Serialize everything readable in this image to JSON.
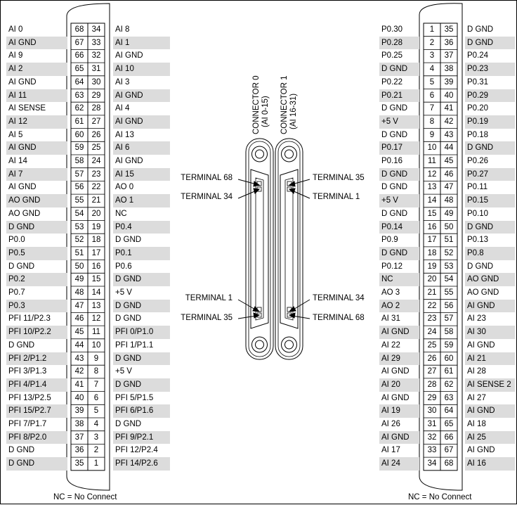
{
  "left_connector": {
    "rows": [
      {
        "left_label": "AI 0",
        "left_pin": "68",
        "right_pin": "34",
        "right_label": "AI 8"
      },
      {
        "left_label": "AI GND",
        "left_pin": "67",
        "right_pin": "33",
        "right_label": "AI 1"
      },
      {
        "left_label": "AI 9",
        "left_pin": "66",
        "right_pin": "32",
        "right_label": "AI GND"
      },
      {
        "left_label": "AI 2",
        "left_pin": "65",
        "right_pin": "31",
        "right_label": "AI 10"
      },
      {
        "left_label": "AI GND",
        "left_pin": "64",
        "right_pin": "30",
        "right_label": "AI 3"
      },
      {
        "left_label": "AI 11",
        "left_pin": "63",
        "right_pin": "29",
        "right_label": "AI GND"
      },
      {
        "left_label": "AI SENSE",
        "left_pin": "62",
        "right_pin": "28",
        "right_label": "AI 4"
      },
      {
        "left_label": "AI 12",
        "left_pin": "61",
        "right_pin": "27",
        "right_label": "AI GND"
      },
      {
        "left_label": "AI 5",
        "left_pin": "60",
        "right_pin": "26",
        "right_label": "AI 13"
      },
      {
        "left_label": "AI GND",
        "left_pin": "59",
        "right_pin": "25",
        "right_label": "AI 6"
      },
      {
        "left_label": "AI 14",
        "left_pin": "58",
        "right_pin": "24",
        "right_label": "AI GND"
      },
      {
        "left_label": "AI 7",
        "left_pin": "57",
        "right_pin": "23",
        "right_label": "AI 15"
      },
      {
        "left_label": "AI GND",
        "left_pin": "56",
        "right_pin": "22",
        "right_label": "AO 0"
      },
      {
        "left_label": "AO GND",
        "left_pin": "55",
        "right_pin": "21",
        "right_label": "AO 1"
      },
      {
        "left_label": "AO GND",
        "left_pin": "54",
        "right_pin": "20",
        "right_label": "NC"
      },
      {
        "left_label": "D GND",
        "left_pin": "53",
        "right_pin": "19",
        "right_label": "P0.4"
      },
      {
        "left_label": "P0.0",
        "left_pin": "52",
        "right_pin": "18",
        "right_label": "D GND"
      },
      {
        "left_label": "P0.5",
        "left_pin": "51",
        "right_pin": "17",
        "right_label": "P0.1"
      },
      {
        "left_label": "D GND",
        "left_pin": "50",
        "right_pin": "16",
        "right_label": "P0.6"
      },
      {
        "left_label": "P0.2",
        "left_pin": "49",
        "right_pin": "15",
        "right_label": "D GND"
      },
      {
        "left_label": "P0.7",
        "left_pin": "48",
        "right_pin": "14",
        "right_label": "+5 V"
      },
      {
        "left_label": "P0.3",
        "left_pin": "47",
        "right_pin": "13",
        "right_label": "D GND"
      },
      {
        "left_label": "PFI 11/P2.3",
        "left_pin": "46",
        "right_pin": "12",
        "right_label": "D GND"
      },
      {
        "left_label": "PFI 10/P2.2",
        "left_pin": "45",
        "right_pin": "11",
        "right_label": "PFI 0/P1.0"
      },
      {
        "left_label": "D GND",
        "left_pin": "44",
        "right_pin": "10",
        "right_label": "PFI 1/P1.1"
      },
      {
        "left_label": "PFI 2/P1.2",
        "left_pin": "43",
        "right_pin": "9",
        "right_label": "D GND"
      },
      {
        "left_label": "PFI 3/P1.3",
        "left_pin": "42",
        "right_pin": "8",
        "right_label": "+5 V"
      },
      {
        "left_label": "PFI 4/P1.4",
        "left_pin": "41",
        "right_pin": "7",
        "right_label": "D GND"
      },
      {
        "left_label": "PFI 13/P2.5",
        "left_pin": "40",
        "right_pin": "6",
        "right_label": "PFI 5/P1.5"
      },
      {
        "left_label": "PFI 15/P2.7",
        "left_pin": "39",
        "right_pin": "5",
        "right_label": "PFI 6/P1.6"
      },
      {
        "left_label": "PFI 7/P1.7",
        "left_pin": "38",
        "right_pin": "4",
        "right_label": "D GND"
      },
      {
        "left_label": "PFI 8/P2.0",
        "left_pin": "37",
        "right_pin": "3",
        "right_label": "PFI 9/P2.1"
      },
      {
        "left_label": "D GND",
        "left_pin": "36",
        "right_pin": "2",
        "right_label": "PFI 12/P2.4"
      },
      {
        "left_label": "D GND",
        "left_pin": "35",
        "right_pin": "1",
        "right_label": "PFI 14/P2.6"
      }
    ],
    "footnote": "NC = No Connect"
  },
  "right_connector": {
    "rows": [
      {
        "left_label": "P0.30",
        "left_pin": "1",
        "right_pin": "35",
        "right_label": "D GND"
      },
      {
        "left_label": "P0.28",
        "left_pin": "2",
        "right_pin": "36",
        "right_label": "D GND"
      },
      {
        "left_label": "P0.25",
        "left_pin": "3",
        "right_pin": "37",
        "right_label": "P0.24"
      },
      {
        "left_label": "D GND",
        "left_pin": "4",
        "right_pin": "38",
        "right_label": "P0.23"
      },
      {
        "left_label": "P0.22",
        "left_pin": "5",
        "right_pin": "39",
        "right_label": "P0.31"
      },
      {
        "left_label": "P0.21",
        "left_pin": "6",
        "right_pin": "40",
        "right_label": "P0.29"
      },
      {
        "left_label": "D GND",
        "left_pin": "7",
        "right_pin": "41",
        "right_label": "P0.20"
      },
      {
        "left_label": "+5 V",
        "left_pin": "8",
        "right_pin": "42",
        "right_label": "P0.19"
      },
      {
        "left_label": "D GND",
        "left_pin": "9",
        "right_pin": "43",
        "right_label": "P0.18"
      },
      {
        "left_label": "P0.17",
        "left_pin": "10",
        "right_pin": "44",
        "right_label": "D GND"
      },
      {
        "left_label": "P0.16",
        "left_pin": "11",
        "right_pin": "45",
        "right_label": "P0.26"
      },
      {
        "left_label": "D GND",
        "left_pin": "12",
        "right_pin": "46",
        "right_label": "P0.27"
      },
      {
        "left_label": "D GND",
        "left_pin": "13",
        "right_pin": "47",
        "right_label": "P0.11"
      },
      {
        "left_label": "+5 V",
        "left_pin": "14",
        "right_pin": "48",
        "right_label": "P0.15"
      },
      {
        "left_label": "D GND",
        "left_pin": "15",
        "right_pin": "49",
        "right_label": "P0.10"
      },
      {
        "left_label": "P0.14",
        "left_pin": "16",
        "right_pin": "50",
        "right_label": "D GND"
      },
      {
        "left_label": "P0.9",
        "left_pin": "17",
        "right_pin": "51",
        "right_label": "P0.13"
      },
      {
        "left_label": "D GND",
        "left_pin": "18",
        "right_pin": "52",
        "right_label": "P0.8"
      },
      {
        "left_label": "P0.12",
        "left_pin": "19",
        "right_pin": "53",
        "right_label": "D GND"
      },
      {
        "left_label": "NC",
        "left_pin": "20",
        "right_pin": "54",
        "right_label": "AO GND"
      },
      {
        "left_label": "AO 3",
        "left_pin": "21",
        "right_pin": "55",
        "right_label": "AO GND"
      },
      {
        "left_label": "AO 2",
        "left_pin": "22",
        "right_pin": "56",
        "right_label": "AI GND"
      },
      {
        "left_label": "AI 31",
        "left_pin": "23",
        "right_pin": "57",
        "right_label": "AI 23"
      },
      {
        "left_label": "AI GND",
        "left_pin": "24",
        "right_pin": "58",
        "right_label": "AI 30"
      },
      {
        "left_label": "AI 22",
        "left_pin": "25",
        "right_pin": "59",
        "right_label": "AI GND"
      },
      {
        "left_label": "AI 29",
        "left_pin": "26",
        "right_pin": "60",
        "right_label": "AI 21"
      },
      {
        "left_label": "AI GND",
        "left_pin": "27",
        "right_pin": "61",
        "right_label": "AI 28"
      },
      {
        "left_label": "AI 20",
        "left_pin": "28",
        "right_pin": "62",
        "right_label": "AI SENSE 2"
      },
      {
        "left_label": "AI GND",
        "left_pin": "29",
        "right_pin": "63",
        "right_label": "AI 27"
      },
      {
        "left_label": "AI 19",
        "left_pin": "30",
        "right_pin": "64",
        "right_label": "AI GND"
      },
      {
        "left_label": "AI 26",
        "left_pin": "31",
        "right_pin": "65",
        "right_label": "AI 18"
      },
      {
        "left_label": "AI GND",
        "left_pin": "32",
        "right_pin": "66",
        "right_label": "AI 25"
      },
      {
        "left_label": "AI 17",
        "left_pin": "33",
        "right_pin": "67",
        "right_label": "AI GND"
      },
      {
        "left_label": "AI 24",
        "left_pin": "34",
        "right_pin": "68",
        "right_label": "AI 16"
      }
    ],
    "footnote": "NC = No Connect"
  },
  "center": {
    "connector0": {
      "title": "CONNECTOR 0",
      "subtitle": "(AI 0-15)"
    },
    "connector1": {
      "title": "CONNECTOR 1",
      "subtitle": "(AI 16-31)"
    },
    "terminals_left": [
      "TERMINAL 68",
      "TERMINAL 34",
      "TERMINAL 1",
      "TERMINAL 35"
    ],
    "terminals_right": [
      "TERMINAL 35",
      "TERMINAL 1",
      "TERMINAL 34",
      "TERMINAL 68"
    ]
  }
}
